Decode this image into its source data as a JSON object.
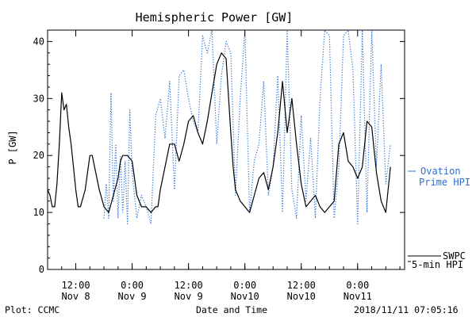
{
  "chart_data": {
    "type": "line",
    "title": "Hemispheric Power [GW]",
    "ylabel": "P [GW]",
    "xlabel": "Date and Time",
    "ylim": [
      0,
      42
    ],
    "xlim": [
      "2018-11-08 06:00",
      "2018-11-11 10:00"
    ],
    "grid": false,
    "y_ticks": [
      "0",
      "10",
      "20",
      "30",
      "40"
    ],
    "x_ticks": [
      {
        "at": "2018-11-08 12:00",
        "line1": "12:00",
        "line2": "Nov 8"
      },
      {
        "at": "2018-11-09 00:00",
        "line1": "0:00",
        "line2": "Nov 9"
      },
      {
        "at": "2018-11-09 12:00",
        "line1": "12:00",
        "line2": "Nov 9"
      },
      {
        "at": "2018-11-10 00:00",
        "line1": "0:00",
        "line2": "Nov10"
      },
      {
        "at": "2018-11-10 12:00",
        "line1": "12:00",
        "line2": "Nov10"
      },
      {
        "at": "2018-11-11 00:00",
        "line1": "0:00",
        "line2": "Nov11"
      }
    ],
    "series": [
      {
        "name": "SWPC 5-min HPI",
        "color": "#000000",
        "style": "solid",
        "x": [
          "2018-11-08 06:00",
          "2018-11-08 06:30",
          "2018-11-08 07:00",
          "2018-11-08 07:30",
          "2018-11-08 08:00",
          "2018-11-08 08:30",
          "2018-11-08 09:00",
          "2018-11-08 09:30",
          "2018-11-08 10:00",
          "2018-11-08 10:30",
          "2018-11-08 11:00",
          "2018-11-08 11:30",
          "2018-11-08 12:00",
          "2018-11-08 12:30",
          "2018-11-08 13:00",
          "2018-11-08 14:00",
          "2018-11-08 15:00",
          "2018-11-08 15:30",
          "2018-11-08 16:00",
          "2018-11-08 17:00",
          "2018-11-08 18:00",
          "2018-11-08 19:00",
          "2018-11-08 20:00",
          "2018-11-08 21:00",
          "2018-11-08 21:30",
          "2018-11-08 22:00",
          "2018-11-08 23:00",
          "2018-11-09 00:00",
          "2018-11-09 01:00",
          "2018-11-09 02:00",
          "2018-11-09 03:00",
          "2018-11-09 04:00",
          "2018-11-09 05:00",
          "2018-11-09 05:30",
          "2018-11-09 06:00",
          "2018-11-09 07:00",
          "2018-11-09 08:00",
          "2018-11-09 09:00",
          "2018-11-09 10:00",
          "2018-11-09 11:00",
          "2018-11-09 12:00",
          "2018-11-09 13:00",
          "2018-11-09 14:00",
          "2018-11-09 15:00",
          "2018-11-09 16:00",
          "2018-11-09 17:00",
          "2018-11-09 18:00",
          "2018-11-09 19:00",
          "2018-11-09 20:00",
          "2018-11-09 21:00",
          "2018-11-09 21:30",
          "2018-11-09 22:00",
          "2018-11-09 23:00",
          "2018-11-10 00:00",
          "2018-11-10 01:00",
          "2018-11-10 02:00",
          "2018-11-10 03:00",
          "2018-11-10 04:00",
          "2018-11-10 05:00",
          "2018-11-10 06:00",
          "2018-11-10 07:00",
          "2018-11-10 08:00",
          "2018-11-10 09:00",
          "2018-11-10 10:00",
          "2018-11-10 11:00",
          "2018-11-10 12:00",
          "2018-11-10 13:00",
          "2018-11-10 14:00",
          "2018-11-10 15:00",
          "2018-11-10 16:00",
          "2018-11-10 17:00",
          "2018-11-10 18:00",
          "2018-11-10 19:00",
          "2018-11-10 20:00",
          "2018-11-10 21:00",
          "2018-11-10 22:00",
          "2018-11-10 23:00",
          "2018-11-11 00:00",
          "2018-11-11 01:00",
          "2018-11-11 02:00",
          "2018-11-11 03:00",
          "2018-11-11 04:00",
          "2018-11-11 05:00",
          "2018-11-11 06:00",
          "2018-11-11 07:00"
        ],
        "values": [
          14,
          13,
          11,
          11,
          15,
          22,
          31,
          28,
          29,
          25,
          22,
          18,
          14,
          11,
          11,
          14,
          20,
          20,
          18,
          14,
          11,
          10,
          13,
          16,
          19,
          20,
          20,
          19,
          13,
          11,
          11,
          10,
          11,
          11,
          14,
          18,
          22,
          22,
          19,
          22,
          26,
          27,
          24,
          22,
          26,
          31,
          36,
          38,
          37,
          24,
          18,
          14,
          12,
          11,
          10,
          13,
          16,
          17,
          14,
          18,
          24,
          33,
          24,
          30,
          22,
          15,
          11,
          12,
          13,
          11,
          10,
          11,
          12,
          22,
          24,
          19,
          18,
          16,
          18,
          26,
          25,
          17,
          12,
          10,
          18
        ]
      },
      {
        "name": "Ovation Prime HPI",
        "color": "#2b6fd6",
        "style": "dotted",
        "x": [
          "2018-11-08 18:00",
          "2018-11-08 18:30",
          "2018-11-08 19:00",
          "2018-11-08 19:30",
          "2018-11-08 20:00",
          "2018-11-08 20:30",
          "2018-11-08 21:00",
          "2018-11-08 21:30",
          "2018-11-08 22:00",
          "2018-11-08 22:30",
          "2018-11-08 23:00",
          "2018-11-08 23:30",
          "2018-11-09 00:00",
          "2018-11-09 01:00",
          "2018-11-09 02:00",
          "2018-11-09 03:00",
          "2018-11-09 04:00",
          "2018-11-09 05:00",
          "2018-11-09 06:00",
          "2018-11-09 07:00",
          "2018-11-09 08:00",
          "2018-11-09 09:00",
          "2018-11-09 10:00",
          "2018-11-09 11:00",
          "2018-11-09 12:00",
          "2018-11-09 13:00",
          "2018-11-09 14:00",
          "2018-11-09 15:00",
          "2018-11-09 16:00",
          "2018-11-09 17:00",
          "2018-11-09 18:00",
          "2018-11-09 19:00",
          "2018-11-09 20:00",
          "2018-11-09 21:00",
          "2018-11-09 22:00",
          "2018-11-09 23:00",
          "2018-11-10 00:00",
          "2018-11-10 01:00",
          "2018-11-10 02:00",
          "2018-11-10 03:00",
          "2018-11-10 04:00",
          "2018-11-10 05:00",
          "2018-11-10 06:00",
          "2018-11-10 07:00",
          "2018-11-10 08:00",
          "2018-11-10 09:00",
          "2018-11-10 10:00",
          "2018-11-10 11:00",
          "2018-11-10 12:00",
          "2018-11-10 13:00",
          "2018-11-10 14:00",
          "2018-11-10 15:00",
          "2018-11-10 16:00",
          "2018-11-10 17:00",
          "2018-11-10 18:00",
          "2018-11-10 19:00",
          "2018-11-10 20:00",
          "2018-11-10 21:00",
          "2018-11-10 22:00",
          "2018-11-10 23:00",
          "2018-11-11 00:00",
          "2018-11-11 01:00",
          "2018-11-11 02:00",
          "2018-11-11 03:00",
          "2018-11-11 04:00",
          "2018-11-11 05:00",
          "2018-11-11 06:00",
          "2018-11-11 07:00"
        ],
        "values": [
          9,
          15,
          9,
          31,
          12,
          22,
          9,
          20,
          10,
          19,
          8,
          28,
          17,
          9,
          13,
          11,
          8,
          27,
          30,
          23,
          33,
          14,
          34,
          35,
          30,
          26,
          24,
          41,
          38,
          42,
          22,
          34,
          40,
          38,
          13,
          30,
          42,
          10,
          19,
          22,
          33,
          13,
          18,
          34,
          10,
          42,
          14,
          9,
          27,
          12,
          23,
          9,
          30,
          42,
          41,
          9,
          18,
          41,
          42,
          35,
          8,
          42,
          10,
          42,
          18,
          36,
          15,
          22
        ]
      }
    ]
  },
  "footer": {
    "left": "Plot: CCMC",
    "center": "Date and Time",
    "right": "2018/11/11 07:05:16"
  },
  "legend": {
    "ovation": {
      "line1": "Ovation",
      "line2": "Prime HPI",
      "color": "#2b6fd6"
    },
    "swpc": {
      "line1": "SWPC",
      "line2": "5-min HPI",
      "color": "#000000"
    }
  }
}
